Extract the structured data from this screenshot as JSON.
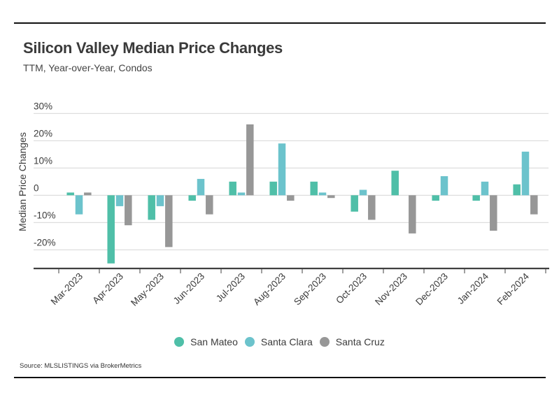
{
  "header": {
    "title": "Silicon Valley Median Price Changes",
    "subtitle": "TTM, Year-over-Year, Condos"
  },
  "footer": {
    "source": "Source:  MLSLISTINGS via BrokerMetrics"
  },
  "colors": {
    "San Mateo": "#4fbfa8",
    "Santa Clara": "#6cc3cc",
    "Santa Cruz": "#979797",
    "grid": "#d9d9d9",
    "axis": "#404040"
  },
  "chart_data": {
    "type": "bar",
    "title": "Silicon Valley Median Price Changes",
    "subtitle": "TTM, Year-over-Year, Condos",
    "xlabel": "",
    "ylabel": "Median Price Changes",
    "ylim": [
      -26,
      30
    ],
    "yticks": [
      30,
      20,
      10,
      0,
      -10,
      -20
    ],
    "ytick_labels": [
      "30%",
      "20%",
      "10%",
      "0",
      "-10%",
      "-20%"
    ],
    "grid": true,
    "legend_position": "bottom-center",
    "categories": [
      "Mar-2023",
      "Apr-2023",
      "May-2023",
      "Jun-2023",
      "Jul-2023",
      "Aug-2023",
      "Sep-2023",
      "Oct-2023",
      "Nov-2023",
      "Dec-2023",
      "Jan-2024",
      "Feb-2024"
    ],
    "series": [
      {
        "name": "San Mateo",
        "values": [
          1,
          -25,
          -9,
          -2,
          5,
          5,
          5,
          -6,
          9,
          -2,
          -2,
          4
        ]
      },
      {
        "name": "Santa Clara",
        "values": [
          -7,
          -4,
          -4,
          6,
          1,
          19,
          1,
          2,
          0,
          7,
          5,
          16
        ]
      },
      {
        "name": "Santa Cruz",
        "values": [
          1,
          -11,
          -19,
          -7,
          26,
          -2,
          -1,
          -9,
          -14,
          0,
          -13,
          -7
        ]
      }
    ]
  }
}
